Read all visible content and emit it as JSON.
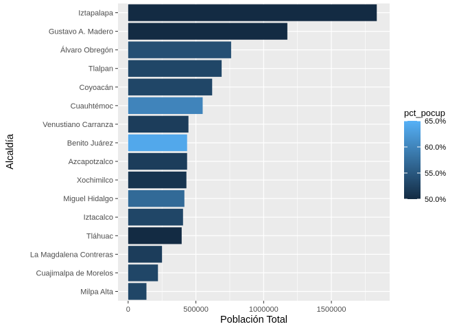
{
  "chart_data": {
    "type": "bar",
    "orientation": "horizontal",
    "xlabel": "Población Total",
    "ylabel": "Alcaldía",
    "xlim": [
      -75000,
      1930000
    ],
    "xticks": [
      0,
      500000,
      1000000,
      1500000
    ],
    "xtick_labels": [
      "0",
      "500000",
      "1000000",
      "1500000"
    ],
    "grid": true,
    "legend": {
      "title": "pct_pocup",
      "placement": "right",
      "min": 0.5,
      "max": 0.65,
      "ticks": [
        0.65,
        0.6,
        0.55,
        0.5
      ],
      "tick_labels": [
        "65.0%",
        "60.0%",
        "55.0%",
        "50.0%"
      ],
      "low_color": "#132B43",
      "high_color": "#56B1F7"
    },
    "colors": {
      "panel_bg": "#EBEBEB",
      "grid_major": "#FFFFFF",
      "text": "#4D4D4D",
      "title_text": "#000000"
    },
    "categories": [
      "Iztapalapa",
      "Gustavo A. Madero",
      "Álvaro Obregón",
      "Tlalpan",
      "Coyoacán",
      "Cuauhtémoc",
      "Venustiano Carranza",
      "Benito Juárez",
      "Azcapotzalco",
      "Xochimilco",
      "Miguel Hidalgo",
      "Iztacalco",
      "Tláhuac",
      "La Magdalena Contreras",
      "Cuajimalpa de Morelos",
      "Milpa Alta"
    ],
    "values": [
      1835000,
      1175000,
      760000,
      690000,
      620000,
      550000,
      445000,
      435000,
      435000,
      430000,
      415000,
      405000,
      395000,
      250000,
      220000,
      135000
    ],
    "pct_pocup": [
      0.5,
      0.5,
      0.54,
      0.53,
      0.53,
      0.6,
      0.52,
      0.64,
      0.52,
      0.51,
      0.57,
      0.53,
      0.5,
      0.52,
      0.53,
      0.53
    ]
  }
}
